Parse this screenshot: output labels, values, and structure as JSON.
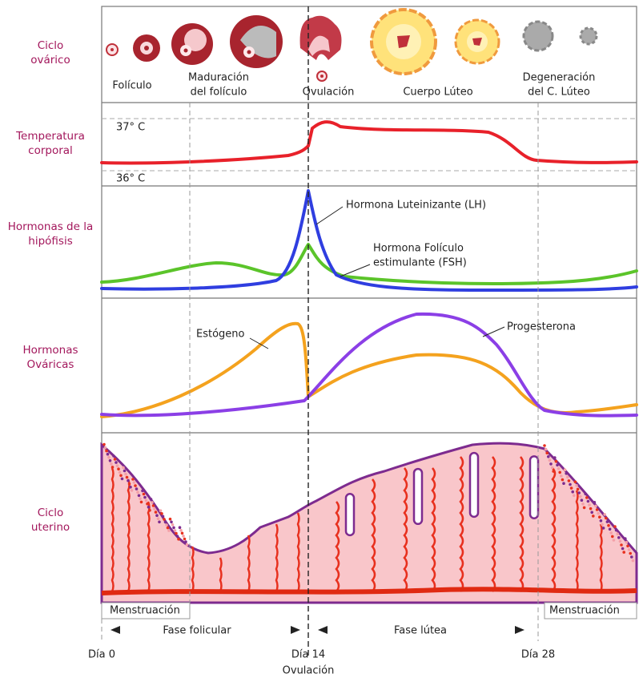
{
  "rows": [
    {
      "label": [
        "Ciclo",
        "ovárico"
      ]
    },
    {
      "label": [
        "Temperatura",
        "corporal"
      ]
    },
    {
      "label": [
        "Hormonas de la",
        "hipófisis"
      ]
    },
    {
      "label": [
        "Hormonas",
        "Ováricas"
      ]
    },
    {
      "label": [
        "Ciclo",
        "uterino"
      ]
    }
  ],
  "ovarian_stages": [
    [
      "Folículo"
    ],
    [
      "Maduración",
      "del folículo"
    ],
    [
      "Ovulación"
    ],
    [
      "Cuerpo Lúteo"
    ],
    [
      "Degeneración",
      "del C. Lúteo"
    ]
  ],
  "temperature": {
    "high": "37° C",
    "low": "36° C"
  },
  "pituitary": {
    "lh": [
      "Hormona Luteinizante (LH)"
    ],
    "fsh": [
      "Hormona Folículo",
      "estimulante (FSH)"
    ]
  },
  "ovarian_hormones": {
    "estrogen": "Estógeno",
    "progesterone": "Progesterona"
  },
  "menstruation": [
    "Menstruación",
    "Menstruación"
  ],
  "phases": [
    "Fase folicular",
    "Fase lútea"
  ],
  "days": [
    "Día 0",
    "Día 14",
    "Día 28"
  ],
  "ovulation": "Ovulación"
}
